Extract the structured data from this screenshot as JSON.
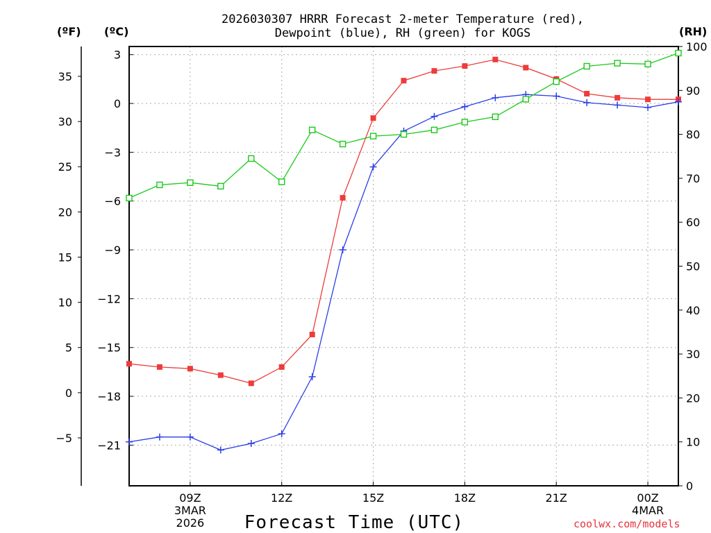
{
  "header": {
    "title_line1": "2026030307 HRRR Forecast 2-meter Temperature (red),",
    "title_line2": "Dewpoint (blue), RH (green) for KOGS"
  },
  "units": {
    "fahrenheit": "(ºF)",
    "celsius": "(ºC)",
    "rh": "(RH)"
  },
  "footer": {
    "xlabel": "Forecast Time (UTC)",
    "credit": "coolwx.com/models"
  },
  "colors": {
    "temperature": "#ee3b3b",
    "dewpoint": "#2b3ee8",
    "rh": "#19c919",
    "grid": "#aaaaaa"
  },
  "chart_data": {
    "type": "line",
    "title": "2026030307 HRRR Forecast 2-meter Temperature (red), Dewpoint (blue), RH (green) for KOGS",
    "xlabel": "Forecast Time (UTC)",
    "x_hours": [
      7,
      8,
      9,
      10,
      11,
      12,
      13,
      14,
      15,
      16,
      17,
      18,
      19,
      20,
      21,
      22,
      23,
      24,
      25
    ],
    "xlim": [
      7,
      25
    ],
    "x_ticks": [
      {
        "hour": 9,
        "lines": [
          "09Z",
          "3MAR",
          "2026"
        ]
      },
      {
        "hour": 12,
        "lines": [
          "12Z"
        ]
      },
      {
        "hour": 15,
        "lines": [
          "15Z"
        ]
      },
      {
        "hour": 18,
        "lines": [
          "18Z"
        ]
      },
      {
        "hour": 21,
        "lines": [
          "21Z"
        ]
      },
      {
        "hour": 24,
        "lines": [
          "00Z",
          "4MAR"
        ]
      }
    ],
    "y_celsius": {
      "lim": [
        -23.5,
        3.5
      ],
      "ticks": [
        3,
        0,
        -3,
        -6,
        -9,
        -12,
        -15,
        -18,
        -21
      ],
      "tick_labels": [
        "3",
        "0",
        "−3",
        "−6",
        "−9",
        "−12",
        "−15",
        "−18",
        "−21"
      ]
    },
    "y_fahrenheit": {
      "ticks": [
        35,
        30,
        25,
        20,
        15,
        10,
        5,
        0,
        -5
      ],
      "tick_labels": [
        "35",
        "30",
        "25",
        "20",
        "15",
        "10",
        "5",
        "0",
        "−5"
      ]
    },
    "y_rh": {
      "lim": [
        0,
        100
      ],
      "ticks": [
        0,
        10,
        20,
        30,
        40,
        50,
        60,
        70,
        80,
        90,
        100
      ],
      "tick_labels": [
        "0",
        "10",
        "20",
        "30",
        "40",
        "50",
        "60",
        "70",
        "80",
        "90",
        "100"
      ]
    },
    "series": [
      {
        "name": "Temperature",
        "axis": "celsius",
        "marker": "filled-square",
        "values": [
          -16.0,
          -16.2,
          -16.3,
          -16.7,
          -17.2,
          -16.2,
          -14.2,
          -5.8,
          -0.9,
          1.4,
          2.0,
          2.3,
          2.7,
          2.2,
          1.5,
          0.6,
          0.35,
          0.25,
          0.25
        ]
      },
      {
        "name": "Dewpoint",
        "axis": "celsius",
        "marker": "plus",
        "values": [
          -20.8,
          -20.5,
          -20.5,
          -21.3,
          -20.9,
          -20.3,
          -16.8,
          -9.0,
          -3.9,
          -1.7,
          -0.8,
          -0.2,
          0.35,
          0.55,
          0.45,
          0.05,
          -0.1,
          -0.25,
          0.1
        ]
      },
      {
        "name": "RH",
        "axis": "rh",
        "marker": "open-square",
        "values": [
          65.5,
          68.5,
          69.0,
          68.2,
          74.5,
          69.2,
          81.0,
          77.8,
          79.6,
          80.0,
          81.0,
          82.8,
          84.0,
          88.0,
          92.0,
          95.5,
          96.2,
          96.0,
          98.5
        ]
      }
    ]
  }
}
